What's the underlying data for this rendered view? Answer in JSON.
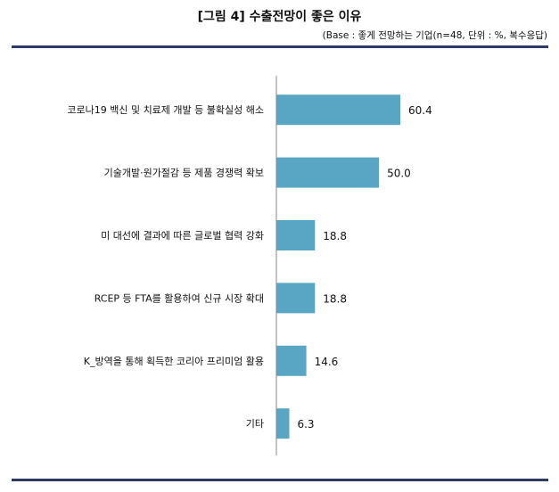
{
  "chart_data": {
    "type": "bar",
    "orientation": "horizontal",
    "title": "[그림 4] 수출전망이 좋은 이유",
    "subtitle": "(Base : 좋게 전망하는 기업(n=48, 단위 : %, 복수응답)",
    "categories": [
      "코로나19 백신 및 치료제 개발 등 불확실성 해소",
      "기술개발·원가절감 등 제품 경쟁력 확보",
      "미 대선에 결과에 따른 글로벌 협력 강화",
      "RCEP 등 FTA를 활용하여 신규 시장 확대",
      "K_방역을 통해 획득한 코리아 프리미엄 활용",
      "기타"
    ],
    "values": [
      60.4,
      50.0,
      18.8,
      18.8,
      14.6,
      6.3
    ],
    "value_labels": [
      "60.4",
      "50.0",
      "18.8",
      "18.8",
      "14.6",
      "6.3"
    ],
    "unit": "%",
    "bar_color": "#58a6c4",
    "rule_color": "#2d3a64",
    "grid": false
  }
}
